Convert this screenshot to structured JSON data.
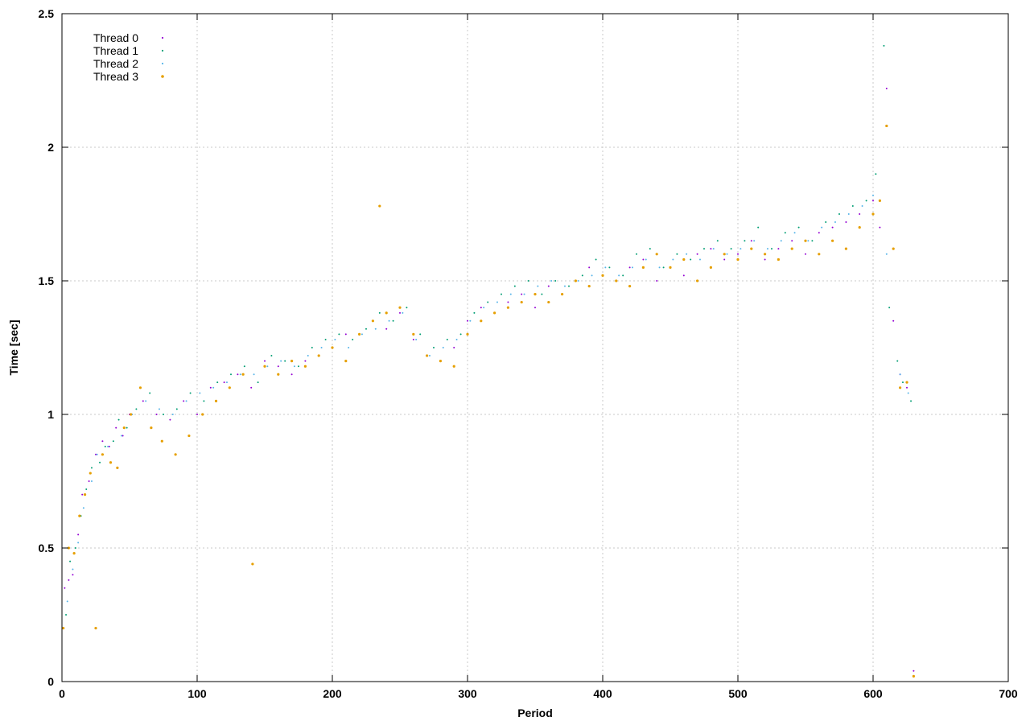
{
  "chart_data": {
    "type": "scatter",
    "title": "",
    "xlabel": "Period",
    "ylabel": "Time [sec]",
    "xlim": [
      0,
      700
    ],
    "ylim": [
      0,
      2.5
    ],
    "xticks": [
      "0",
      "100",
      "200",
      "300",
      "400",
      "500",
      "600",
      "700"
    ],
    "yticks": [
      "0",
      "0.5",
      "1",
      "1.5",
      "2",
      "2.5"
    ],
    "grid": true,
    "legend_position": "top-left",
    "series": [
      {
        "name": "Thread 0",
        "color": "#9400d3",
        "x": [
          2,
          5,
          8,
          12,
          15,
          20,
          25,
          30,
          35,
          40,
          45,
          50,
          60,
          70,
          80,
          90,
          100,
          110,
          120,
          130,
          140,
          150,
          160,
          170,
          180,
          190,
          200,
          210,
          220,
          230,
          240,
          250,
          260,
          270,
          280,
          290,
          300,
          310,
          320,
          330,
          340,
          350,
          360,
          370,
          380,
          390,
          400,
          410,
          420,
          430,
          440,
          450,
          460,
          470,
          480,
          490,
          500,
          510,
          520,
          530,
          540,
          550,
          560,
          570,
          580,
          590,
          600,
          605,
          610,
          615,
          620,
          625,
          630
        ],
        "y": [
          0.35,
          0.38,
          0.4,
          0.55,
          0.7,
          0.75,
          0.85,
          0.9,
          0.88,
          0.95,
          0.92,
          1.0,
          1.05,
          1.0,
          0.98,
          1.05,
          1.0,
          1.1,
          1.12,
          1.15,
          1.1,
          1.2,
          1.18,
          1.15,
          1.2,
          1.22,
          1.25,
          1.3,
          1.3,
          1.35,
          1.32,
          1.38,
          1.28,
          1.22,
          1.2,
          1.25,
          1.35,
          1.4,
          1.38,
          1.42,
          1.45,
          1.4,
          1.48,
          1.45,
          1.5,
          1.55,
          1.52,
          1.5,
          1.55,
          1.58,
          1.5,
          1.55,
          1.52,
          1.6,
          1.62,
          1.58,
          1.6,
          1.65,
          1.58,
          1.62,
          1.65,
          1.6,
          1.68,
          1.7,
          1.72,
          1.75,
          1.8,
          1.7,
          2.22,
          1.35,
          1.15,
          1.1,
          0.04
        ]
      },
      {
        "name": "Thread 1",
        "color": "#009e73",
        "x": [
          3,
          6,
          10,
          14,
          18,
          22,
          28,
          32,
          38,
          42,
          48,
          55,
          65,
          75,
          85,
          95,
          105,
          115,
          125,
          135,
          145,
          155,
          165,
          175,
          185,
          195,
          205,
          215,
          225,
          235,
          245,
          255,
          265,
          275,
          285,
          295,
          305,
          315,
          325,
          335,
          345,
          355,
          365,
          375,
          385,
          395,
          405,
          415,
          425,
          435,
          445,
          455,
          465,
          475,
          485,
          495,
          505,
          515,
          525,
          535,
          545,
          555,
          565,
          575,
          585,
          595,
          602,
          608,
          612,
          618,
          622,
          628
        ],
        "y": [
          0.25,
          0.45,
          0.5,
          0.62,
          0.72,
          0.8,
          0.82,
          0.88,
          0.9,
          0.98,
          0.95,
          1.02,
          1.08,
          1.0,
          1.02,
          1.08,
          1.05,
          1.12,
          1.15,
          1.18,
          1.12,
          1.22,
          1.2,
          1.18,
          1.25,
          1.28,
          1.3,
          1.28,
          1.32,
          1.38,
          1.35,
          1.4,
          1.3,
          1.25,
          1.28,
          1.3,
          1.38,
          1.42,
          1.45,
          1.48,
          1.5,
          1.45,
          1.5,
          1.48,
          1.52,
          1.58,
          1.55,
          1.52,
          1.6,
          1.62,
          1.55,
          1.6,
          1.58,
          1.62,
          1.65,
          1.62,
          1.65,
          1.7,
          1.62,
          1.68,
          1.7,
          1.65,
          1.72,
          1.75,
          1.78,
          1.8,
          1.9,
          2.38,
          1.4,
          1.2,
          1.12,
          1.05
        ]
      },
      {
        "name": "Thread 2",
        "color": "#56b4e9",
        "x": [
          4,
          8,
          12,
          16,
          22,
          26,
          34,
          44,
          52,
          62,
          72,
          82,
          92,
          102,
          112,
          122,
          132,
          142,
          152,
          162,
          172,
          182,
          192,
          202,
          212,
          222,
          232,
          242,
          252,
          262,
          272,
          282,
          292,
          302,
          312,
          322,
          332,
          342,
          352,
          362,
          372,
          382,
          392,
          402,
          412,
          422,
          432,
          442,
          452,
          462,
          472,
          482,
          492,
          502,
          512,
          522,
          532,
          542,
          552,
          562,
          572,
          582,
          592,
          600,
          610,
          620,
          626
        ],
        "y": [
          0.3,
          0.42,
          0.52,
          0.65,
          0.75,
          0.85,
          0.88,
          0.92,
          1.0,
          1.05,
          1.02,
          1.0,
          1.05,
          1.08,
          1.1,
          1.12,
          1.15,
          1.15,
          1.18,
          1.2,
          1.18,
          1.22,
          1.25,
          1.28,
          1.25,
          1.3,
          1.32,
          1.35,
          1.38,
          1.28,
          1.22,
          1.25,
          1.28,
          1.35,
          1.4,
          1.42,
          1.45,
          1.45,
          1.48,
          1.5,
          1.48,
          1.5,
          1.52,
          1.55,
          1.52,
          1.55,
          1.58,
          1.55,
          1.58,
          1.6,
          1.58,
          1.62,
          1.6,
          1.62,
          1.65,
          1.62,
          1.65,
          1.68,
          1.65,
          1.7,
          1.72,
          1.75,
          1.78,
          1.82,
          1.6,
          1.15,
          1.08
        ]
      },
      {
        "name": "Thread 3",
        "color": "#e69f00",
        "x": [
          1,
          5,
          9,
          13,
          17,
          21,
          25,
          30,
          36,
          41,
          46,
          51,
          58,
          66,
          74,
          84,
          94,
          104,
          114,
          124,
          134,
          141,
          150,
          160,
          170,
          180,
          190,
          200,
          210,
          220,
          230,
          235,
          240,
          250,
          260,
          270,
          280,
          290,
          300,
          310,
          320,
          330,
          340,
          350,
          360,
          370,
          380,
          390,
          400,
          410,
          420,
          430,
          440,
          450,
          460,
          470,
          480,
          490,
          500,
          510,
          520,
          530,
          540,
          550,
          560,
          570,
          580,
          590,
          600,
          605,
          610,
          615,
          620,
          625,
          630
        ],
        "y": [
          0.2,
          0.5,
          0.48,
          0.62,
          0.7,
          0.78,
          0.2,
          0.85,
          0.82,
          0.8,
          0.95,
          1.0,
          1.1,
          0.95,
          0.9,
          0.85,
          0.92,
          1.0,
          1.05,
          1.1,
          1.15,
          0.44,
          1.18,
          1.15,
          1.2,
          1.18,
          1.22,
          1.25,
          1.2,
          1.3,
          1.35,
          1.78,
          1.38,
          1.4,
          1.3,
          1.22,
          1.2,
          1.18,
          1.3,
          1.35,
          1.38,
          1.4,
          1.42,
          1.45,
          1.42,
          1.45,
          1.5,
          1.48,
          1.52,
          1.5,
          1.48,
          1.55,
          1.6,
          1.55,
          1.58,
          1.5,
          1.55,
          1.6,
          1.58,
          1.62,
          1.6,
          1.58,
          1.62,
          1.65,
          1.6,
          1.65,
          1.62,
          1.7,
          1.75,
          1.8,
          2.08,
          1.62,
          1.1,
          1.12,
          0.02
        ]
      }
    ]
  }
}
